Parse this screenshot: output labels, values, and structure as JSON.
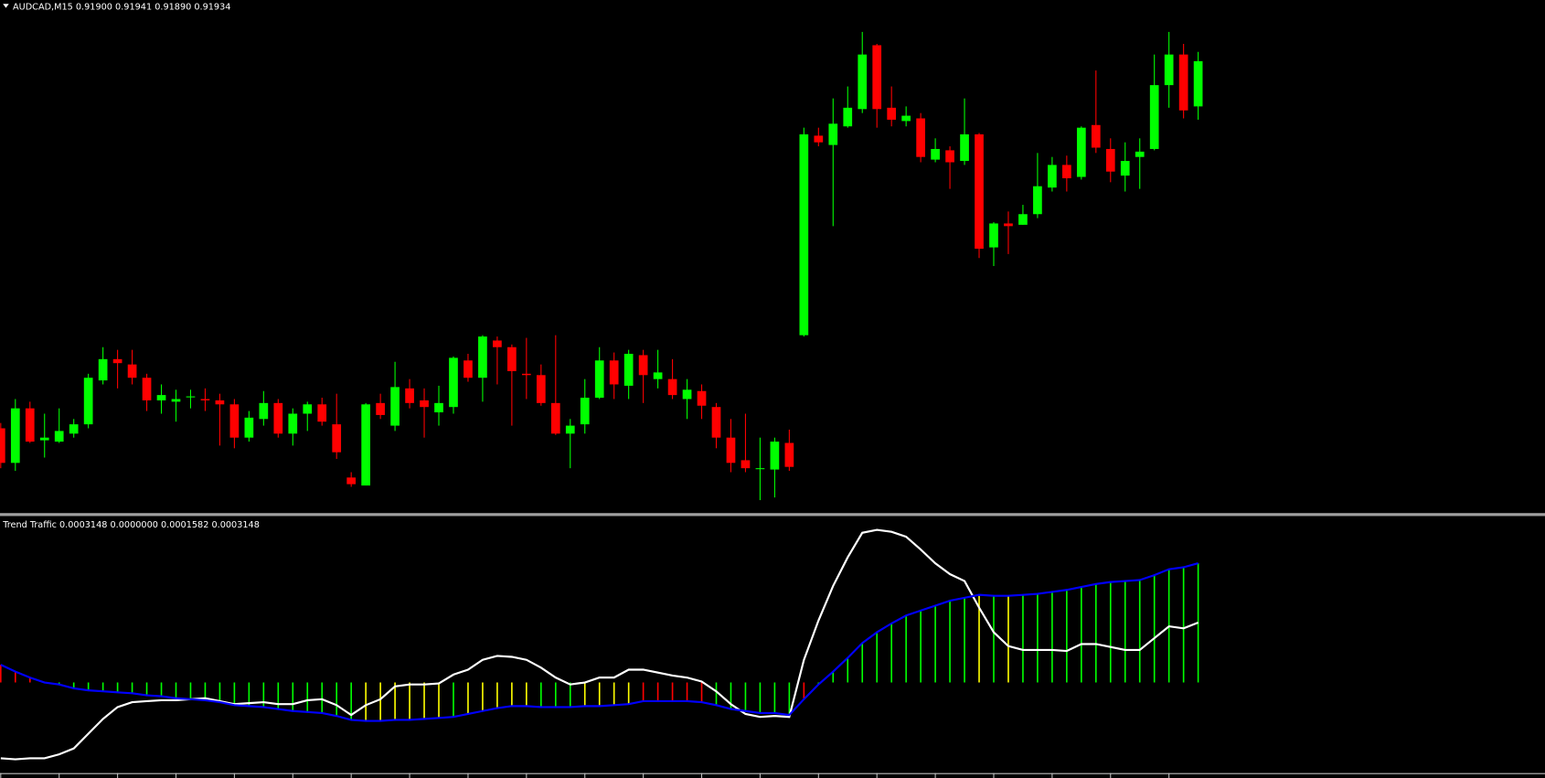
{
  "chart_data": [
    {
      "type": "candlestick",
      "title": "AUDCAD,M15  0.91900 0.91941 0.91890 0.91934",
      "up_color": "#00ff00",
      "down_color": "#ff0000",
      "ylim": [
        0.91595,
        0.9198
      ],
      "open": [
        0.91658,
        0.91632,
        0.91673,
        0.91649,
        0.91648,
        0.91654,
        0.91661,
        0.91694,
        0.9171,
        0.91706,
        0.91696,
        0.91679,
        0.91678,
        0.91682,
        0.9168,
        0.91679,
        0.91676,
        0.91651,
        0.91665,
        0.91677,
        0.91654,
        0.91669,
        0.91676,
        0.91661,
        0.91621,
        0.91615,
        0.91677,
        0.9166,
        0.91688,
        0.91679,
        0.9167,
        0.91674,
        0.91709,
        0.91696,
        0.91724,
        0.91719,
        0.91699,
        0.91698,
        0.91677,
        0.91654,
        0.91661,
        0.91681,
        0.91709,
        0.9169,
        0.91713,
        0.91695,
        0.91695,
        0.9168,
        0.91686,
        0.91674,
        0.91651,
        0.91634,
        0.91628,
        0.91627,
        0.91647,
        0.91728,
        0.91878,
        0.91871,
        0.91885,
        0.91898,
        0.91946,
        0.91899,
        0.91889,
        0.91891,
        0.9186,
        0.91867,
        0.91859,
        0.91879,
        0.91794,
        0.91812,
        0.91811,
        0.91819,
        0.91839,
        0.91856,
        0.91847,
        0.91886,
        0.91868,
        0.91848,
        0.91862,
        0.91868,
        0.91916,
        0.91939,
        0.919
      ],
      "high": [
        0.91662,
        0.9168,
        0.91678,
        0.91669,
        0.91673,
        0.91665,
        0.91699,
        0.91719,
        0.91717,
        0.91717,
        0.91699,
        0.91691,
        0.91687,
        0.91687,
        0.91688,
        0.91684,
        0.9168,
        0.91671,
        0.91686,
        0.9168,
        0.91673,
        0.91678,
        0.91681,
        0.91684,
        0.91625,
        0.91677,
        0.91684,
        0.91708,
        0.91695,
        0.91688,
        0.9169,
        0.91712,
        0.91714,
        0.91728,
        0.91727,
        0.91721,
        0.91726,
        0.91706,
        0.91728,
        0.91665,
        0.91695,
        0.91719,
        0.91715,
        0.91717,
        0.91717,
        0.91717,
        0.9171,
        0.91695,
        0.91691,
        0.91677,
        0.91665,
        0.91669,
        0.91651,
        0.91651,
        0.91657,
        0.91884,
        0.91884,
        0.91906,
        0.91915,
        0.91956,
        0.91947,
        0.91915,
        0.919,
        0.91895,
        0.91876,
        0.9187,
        0.91906,
        0.9188,
        0.91813,
        0.91821,
        0.91826,
        0.91865,
        0.91862,
        0.91863,
        0.91885,
        0.91927,
        0.91876,
        0.91873,
        0.91876,
        0.91939,
        0.91956,
        0.91947,
        0.91941
      ],
      "low": [
        0.91628,
        0.91626,
        0.91647,
        0.91636,
        0.91647,
        0.91651,
        0.91658,
        0.91691,
        0.91688,
        0.91691,
        0.91671,
        0.91669,
        0.91663,
        0.91673,
        0.91671,
        0.91645,
        0.91643,
        0.91648,
        0.9166,
        0.91651,
        0.91645,
        0.91656,
        0.9166,
        0.91635,
        0.91614,
        0.91615,
        0.91665,
        0.91656,
        0.91673,
        0.91651,
        0.9166,
        0.91669,
        0.91693,
        0.91678,
        0.91691,
        0.9166,
        0.9168,
        0.91675,
        0.91653,
        0.91628,
        0.91654,
        0.9168,
        0.9168,
        0.9168,
        0.91677,
        0.91688,
        0.9168,
        0.91665,
        0.91665,
        0.91643,
        0.91625,
        0.91625,
        0.91604,
        0.91606,
        0.91626,
        0.91727,
        0.9187,
        0.9181,
        0.91884,
        0.91895,
        0.91884,
        0.91885,
        0.91885,
        0.91858,
        0.91858,
        0.91838,
        0.91856,
        0.91786,
        0.9178,
        0.91789,
        0.91811,
        0.91816,
        0.91836,
        0.91836,
        0.91845,
        0.91865,
        0.91843,
        0.91836,
        0.91838,
        0.91867,
        0.91899,
        0.91891,
        0.9189
      ],
      "close": [
        0.91632,
        0.91673,
        0.91648,
        0.91651,
        0.91656,
        0.91661,
        0.91696,
        0.9171,
        0.91707,
        0.91696,
        0.91679,
        0.91683,
        0.9168,
        0.91682,
        0.91679,
        0.91676,
        0.91651,
        0.91666,
        0.91677,
        0.91654,
        0.91669,
        0.91676,
        0.91663,
        0.9164,
        0.91616,
        0.91676,
        0.91668,
        0.91689,
        0.91677,
        0.91674,
        0.91677,
        0.91711,
        0.91696,
        0.91727,
        0.91719,
        0.91701,
        0.91698,
        0.91677,
        0.91654,
        0.9166,
        0.91681,
        0.91709,
        0.91691,
        0.91714,
        0.91698,
        0.917,
        0.91683,
        0.91687,
        0.91675,
        0.91651,
        0.91632,
        0.91628,
        0.91628,
        0.91648,
        0.91629,
        0.91879,
        0.91873,
        0.91887,
        0.91899,
        0.91939,
        0.91898,
        0.9189,
        0.91893,
        0.91862,
        0.91868,
        0.91858,
        0.91879,
        0.91793,
        0.91812,
        0.9181,
        0.91819,
        0.9184,
        0.91856,
        0.91846,
        0.91884,
        0.91869,
        0.91851,
        0.91859,
        0.91866,
        0.91916,
        0.91939,
        0.91897,
        0.91934
      ]
    },
    {
      "type": "line",
      "title": "Trend Traffic 0.0003148 0.0000000 0.0001582 0.0003148",
      "ylim": [
        -0.0002392,
        0.0004368
      ],
      "series": [
        {
          "color": "#0000ff",
          "values": [
            4.68e-05,
            2.86e-05,
            1.3e-05,
            0,
            -5.2e-06,
            -1.56e-05,
            -2.08e-05,
            -2.34e-05,
            -2.6e-05,
            -2.86e-05,
            -3.38e-05,
            -3.64e-05,
            -4.16e-05,
            -4.42e-05,
            -4.68e-05,
            -5.2e-05,
            -5.98e-05,
            -6.24e-05,
            -6.5e-05,
            -7.02e-05,
            -7.54e-05,
            -7.8e-05,
            -8.06e-05,
            -8.84e-05,
            -9.88e-05,
            -0.0001014,
            -0.0001014,
            -9.88e-05,
            -9.88e-05,
            -9.62e-05,
            -9.36e-05,
            -9.1e-05,
            -8.32e-05,
            -7.54e-05,
            -6.76e-05,
            -6.24e-05,
            -6.24e-05,
            -6.5e-05,
            -6.5e-05,
            -6.5e-05,
            -6.24e-05,
            -6.24e-05,
            -5.98e-05,
            -5.72e-05,
            -4.94e-05,
            -4.94e-05,
            -4.94e-05,
            -4.94e-05,
            -5.2e-05,
            -5.98e-05,
            -7.02e-05,
            -7.54e-05,
            -8.06e-05,
            -8.06e-05,
            -8.58e-05,
            -4.42e-05,
            -5.2e-06,
            2.86e-05,
            6.5e-05,
            0.000104,
            0.0001326,
            0.000156,
            0.0001768,
            0.0001898,
            0.0002028,
            0.0002158,
            0.0002236,
            0.0002314,
            0.0002288,
            0.0002288,
            0.0002314,
            0.000234,
            0.0002392,
            0.0002444,
            0.0002522,
            0.00026,
            0.0002652,
            0.0002678,
            0.0002704,
            0.0002834,
            0.000299,
            0.0003042,
            0.0003148
          ]
        },
        {
          "color": "#ffffff",
          "values": [
            -0.0002002,
            -0.0002028,
            -0.0002002,
            -0.0002002,
            -0.0001898,
            -0.0001742,
            -0.0001352,
            -9.62e-05,
            -6.5e-05,
            -5.2e-05,
            -4.94e-05,
            -4.68e-05,
            -4.68e-05,
            -4.42e-05,
            -4.16e-05,
            -4.94e-05,
            -5.72e-05,
            -5.46e-05,
            -5.2e-05,
            -5.72e-05,
            -5.72e-05,
            -4.68e-05,
            -4.42e-05,
            -5.98e-05,
            -8.58e-05,
            -5.98e-05,
            -4.42e-05,
            -1.04e-05,
            -5.2e-06,
            -5.2e-06,
            -2.6e-06,
            2.08e-05,
            3.38e-05,
            5.98e-05,
            7.02e-05,
            6.76e-05,
            5.98e-05,
            3.9e-05,
            1.3e-05,
            -5.2e-06,
            0,
            1.3e-05,
            1.3e-05,
            3.38e-05,
            3.38e-05,
            2.6e-05,
            1.82e-05,
            1.3e-05,
            2.6e-06,
            -2.34e-05,
            -5.72e-05,
            -8.32e-05,
            -9.1e-05,
            -8.84e-05,
            -9.1e-05,
            5.98e-05,
            0.0001638,
            0.0002548,
            0.0003302,
            0.0003952,
            0.000403,
            0.0003978,
            0.0003848,
            0.000351,
            0.0003146,
            0.000286,
            0.0002678,
            0.0001976,
            0.0001326,
            9.62e-05,
            8.58e-05,
            8.58e-05,
            8.58e-05,
            8.32e-05,
            0.0001014,
            0.0001014,
            9.36e-05,
            8.58e-05,
            8.58e-05,
            0.000117,
            0.0001482,
            0.000143,
            0.0001582
          ]
        }
      ],
      "histogram_palette": [
        "#ff0000",
        "#00ff00",
        "#ffff00"
      ],
      "histogram_colors": [
        0,
        0,
        0,
        1,
        1,
        1,
        1,
        1,
        1,
        1,
        1,
        1,
        1,
        1,
        1,
        1,
        1,
        1,
        1,
        1,
        1,
        1,
        1,
        1,
        1,
        2,
        2,
        2,
        2,
        2,
        2,
        1,
        2,
        2,
        2,
        2,
        2,
        1,
        1,
        1,
        2,
        2,
        2,
        2,
        0,
        0,
        0,
        0,
        0,
        1,
        1,
        1,
        1,
        1,
        1,
        0,
        1,
        1,
        1,
        1,
        1,
        1,
        1,
        1,
        1,
        1,
        1,
        2,
        1,
        2,
        1,
        1,
        1,
        1,
        1,
        1,
        1,
        1,
        1,
        1,
        1,
        1,
        1
      ]
    }
  ]
}
